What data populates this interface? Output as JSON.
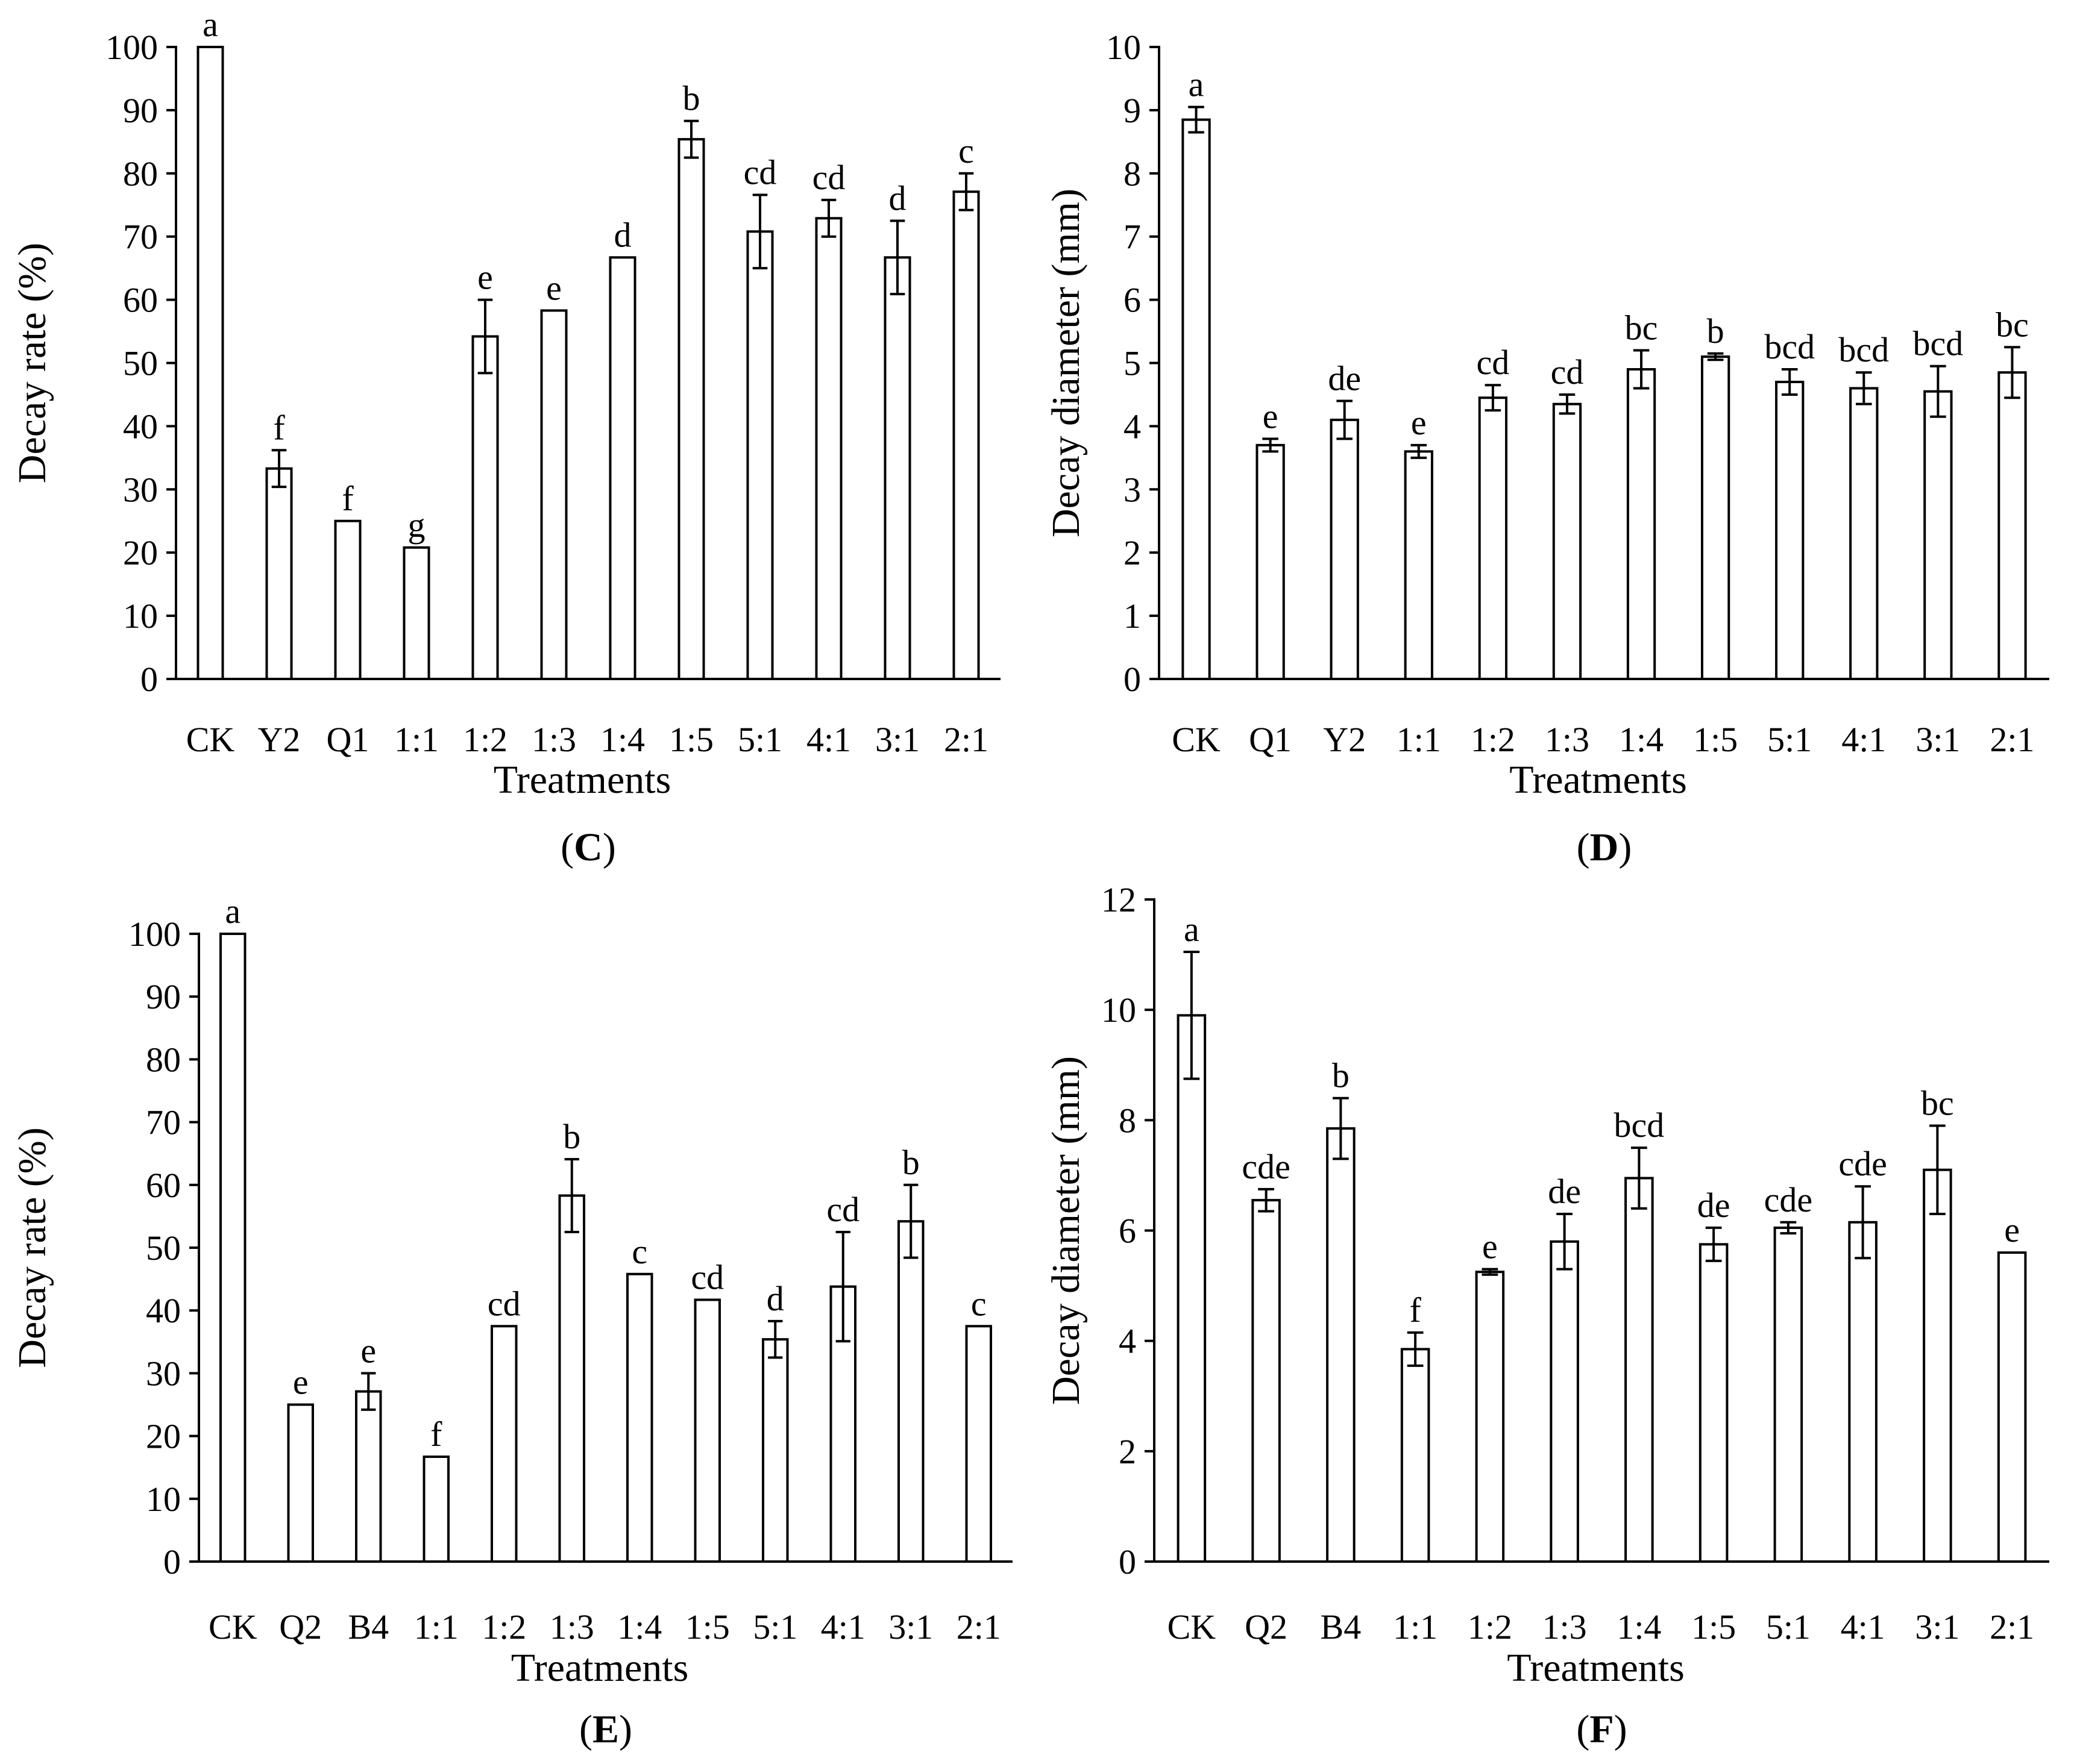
{
  "chart_data": [
    {
      "panel": "C",
      "type": "bar",
      "xlabel": "Treatments",
      "ylabel": "Decay rate (%)",
      "ylim": [
        0,
        100
      ],
      "yticks": [
        "0",
        "10",
        "20",
        "30",
        "40",
        "50",
        "60",
        "70",
        "80",
        "90",
        "100"
      ],
      "categories": [
        "CK",
        "Y2",
        "Q1",
        "1:1",
        "1:2",
        "1:3",
        "1:4",
        "1:5",
        "5:1",
        "4:1",
        "3:1",
        "2:1"
      ],
      "values": [
        100,
        33.3,
        25,
        20.8,
        54.2,
        58.3,
        66.7,
        85.4,
        70.8,
        72.9,
        66.7,
        77.1
      ],
      "errors": [
        0,
        2.9,
        0,
        0,
        5.8,
        0,
        0,
        2.9,
        5.8,
        2.9,
        5.8,
        2.9
      ],
      "letters": [
        "a",
        "f",
        "f",
        "g",
        "e",
        "e",
        "d",
        "b",
        "cd",
        "cd",
        "d",
        "c"
      ]
    },
    {
      "panel": "D",
      "type": "bar",
      "xlabel": "Treatments",
      "ylabel": "Decay diameter (mm)",
      "ylim": [
        0,
        10
      ],
      "yticks": [
        "0",
        "1",
        "2",
        "3",
        "4",
        "5",
        "6",
        "7",
        "8",
        "9",
        "10"
      ],
      "categories": [
        "CK",
        "Q1",
        "Y2",
        "1:1",
        "1:2",
        "1:3",
        "1:4",
        "1:5",
        "5:1",
        "4:1",
        "3:1",
        "2:1"
      ],
      "values": [
        8.85,
        3.7,
        4.1,
        3.6,
        4.45,
        4.35,
        4.9,
        5.1,
        4.7,
        4.6,
        4.55,
        4.85
      ],
      "errors": [
        0.2,
        0.1,
        0.3,
        0.1,
        0.2,
        0.15,
        0.3,
        0.05,
        0.2,
        0.25,
        0.4,
        0.4
      ],
      "letters": [
        "a",
        "e",
        "de",
        "e",
        "cd",
        "cd",
        "bc",
        "b",
        "bcd",
        "bcd",
        "bcd",
        "bc"
      ]
    },
    {
      "panel": "E",
      "type": "bar",
      "xlabel": "Treatments",
      "ylabel": "Decay rate (%)",
      "ylim": [
        0,
        100
      ],
      "yticks": [
        "0",
        "10",
        "20",
        "30",
        "40",
        "50",
        "60",
        "70",
        "80",
        "90",
        "100"
      ],
      "categories": [
        "CK",
        "Q2",
        "B4",
        "1:1",
        "1:2",
        "1:3",
        "1:4",
        "1:5",
        "5:1",
        "4:1",
        "3:1",
        "2:1"
      ],
      "values": [
        100,
        25,
        27.1,
        16.7,
        37.5,
        58.3,
        45.8,
        41.7,
        35.4,
        43.8,
        54.2,
        37.5
      ],
      "errors": [
        0,
        0,
        2.9,
        0,
        0,
        5.8,
        0,
        0,
        2.9,
        8.7,
        5.8,
        0
      ],
      "letters": [
        "a",
        "e",
        "e",
        "f",
        "cd",
        "b",
        "c",
        "cd",
        "d",
        "cd",
        "b",
        "c"
      ]
    },
    {
      "panel": "F",
      "type": "bar",
      "xlabel": "Treatments",
      "ylabel": "Decay diameter (mm)",
      "ylim": [
        0,
        12
      ],
      "yticks": [
        "0",
        "2",
        "4",
        "6",
        "8",
        "10",
        "12"
      ],
      "categories": [
        "CK",
        "Q2",
        "B4",
        "1:1",
        "1:2",
        "1:3",
        "1:4",
        "1:5",
        "5:1",
        "4:1",
        "3:1",
        "2:1"
      ],
      "values": [
        9.9,
        6.55,
        7.85,
        3.85,
        5.25,
        5.8,
        6.95,
        5.75,
        6.05,
        6.15,
        7.1,
        5.6
      ],
      "errors": [
        1.15,
        0.2,
        0.55,
        0.3,
        0.05,
        0.5,
        0.55,
        0.3,
        0.1,
        0.65,
        0.8,
        0
      ],
      "letters": [
        "a",
        "cde",
        "b",
        "f",
        "e",
        "de",
        "bcd",
        "de",
        "cde",
        "cde",
        "bc",
        "e"
      ]
    }
  ]
}
